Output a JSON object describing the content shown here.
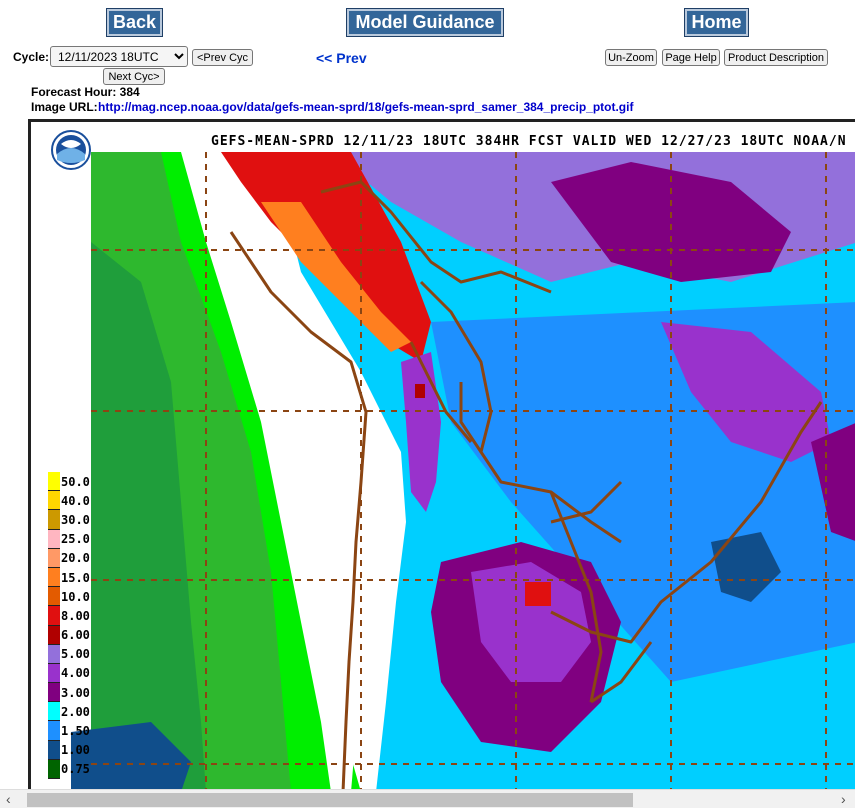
{
  "nav": {
    "back": "Back",
    "model_guidance": "Model Guidance",
    "home": "Home"
  },
  "cycle": {
    "label": "Cycle:",
    "selected": "12/11/2023 18UTC",
    "prev_cyc": "<Prev Cyc",
    "next_cyc": "Next Cyc>"
  },
  "prev_link": "<< Prev",
  "tools": {
    "unzoom": "Un-Zoom",
    "page_help": "Page Help",
    "product_description": "Product Description"
  },
  "forecast_hour": "Forecast Hour: 384",
  "image_url_label": "Image URL:",
  "image_url": "http://mag.ncep.noaa.gov/data/gefs-mean-sprd/18/gefs-mean-sprd_samer_384_precip_ptot.gif",
  "map": {
    "title": "GEFS-MEAN-SPRD 12/11/23 18UTC 384HR FCST VALID WED 12/27/23 18UTC NOAA/N",
    "logo": "noaa-logo",
    "legend": [
      {
        "label": "50.0",
        "color": "#ffff00"
      },
      {
        "label": "40.0",
        "color": "#ffd700"
      },
      {
        "label": "30.0",
        "color": "#cc9900"
      },
      {
        "label": "25.0",
        "color": "#ffb6c1"
      },
      {
        "label": "20.0",
        "color": "#ff9966"
      },
      {
        "label": "15.0",
        "color": "#ff7f1f"
      },
      {
        "label": "10.0",
        "color": "#e35b00"
      },
      {
        "label": "8.00",
        "color": "#e01010"
      },
      {
        "label": "6.00",
        "color": "#b00000"
      },
      {
        "label": "5.00",
        "color": "#9370db"
      },
      {
        "label": "4.00",
        "color": "#9932cc"
      },
      {
        "label": "3.00",
        "color": "#800080"
      },
      {
        "label": "2.00",
        "color": "#00ffff"
      },
      {
        "label": "1.50",
        "color": "#1e90ff"
      },
      {
        "label": "1.00",
        "color": "#104e8b"
      },
      {
        "label": "0.75",
        "color": "#006400"
      }
    ]
  },
  "scroll": {
    "left_arrow": "‹",
    "right_arrow": "›"
  }
}
